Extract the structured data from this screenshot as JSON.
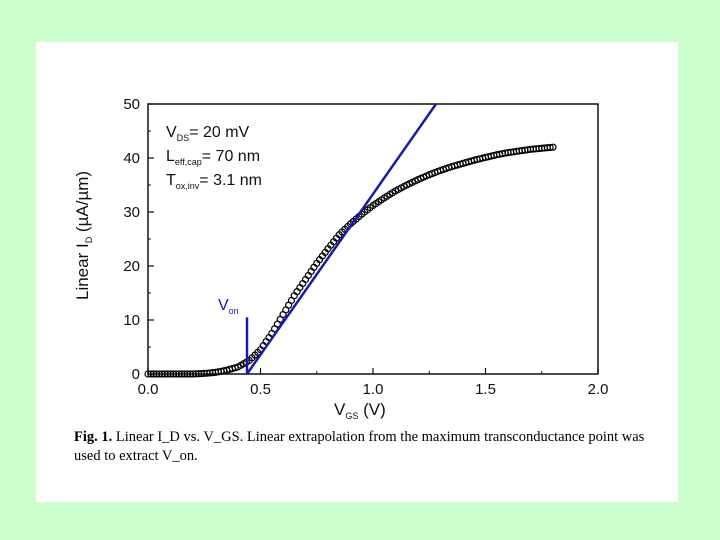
{
  "chart_data": {
    "type": "scatter",
    "title": "",
    "xlabel": {
      "main": "V",
      "sub": "GS",
      "rest": " (V)"
    },
    "ylabel": {
      "main": "Linear I",
      "sub": "D",
      "rest": " (µA/µm)"
    },
    "xlim": [
      0.0,
      2.0
    ],
    "ylim": [
      0,
      50
    ],
    "xticks": [
      "0.0",
      "0.5",
      "1.0",
      "1.5",
      "2.0"
    ],
    "yticks": [
      "0",
      "10",
      "20",
      "30",
      "40",
      "50"
    ],
    "grid": false,
    "series": [
      {
        "marker": "open-circle",
        "color": "#000000",
        "x": [
          0.0,
          0.05,
          0.1,
          0.15,
          0.2,
          0.25,
          0.3,
          0.35,
          0.4,
          0.45,
          0.5,
          0.55,
          0.6,
          0.65,
          0.7,
          0.75,
          0.8,
          0.85,
          0.9,
          0.95,
          1.0,
          1.05,
          1.1,
          1.15,
          1.2,
          1.25,
          1.3,
          1.35,
          1.4,
          1.45,
          1.5,
          1.55,
          1.6,
          1.65,
          1.7,
          1.75,
          1.8
        ],
        "y": [
          0,
          0,
          0,
          0,
          0,
          0.1,
          0.3,
          0.7,
          1.3,
          2.5,
          4.5,
          7.5,
          11,
          14.5,
          17.5,
          20.5,
          23.2,
          25.8,
          27.8,
          29.6,
          31.2,
          32.6,
          33.9,
          35.0,
          36.0,
          36.9,
          37.7,
          38.4,
          39.0,
          39.6,
          40.1,
          40.6,
          41.0,
          41.3,
          41.6,
          41.8,
          42.0
        ]
      }
    ],
    "extrapolation_line": {
      "color": "#1a1aaa",
      "x": [
        0.44,
        1.28
      ],
      "y": [
        0,
        50
      ]
    },
    "von_marker": {
      "x": 0.44,
      "y_top": 10.5,
      "color": "#1a1aaa"
    },
    "annotations": {
      "von_label": {
        "main": "V",
        "sub": "on"
      },
      "params": [
        {
          "main": "V",
          "sub": "DS",
          "rest": "= 20 mV"
        },
        {
          "main": "L",
          "sub": "eff,cap",
          "rest": "= 70 nm"
        },
        {
          "main": "T",
          "sub": "ox,inv",
          "rest": "= 3.1 nm"
        }
      ]
    }
  },
  "caption": {
    "label": "Fig. 1.",
    "text": " Linear I_D vs. V_GS. Linear extrapolation from the maximum transconductance point was used to extract V_on."
  }
}
